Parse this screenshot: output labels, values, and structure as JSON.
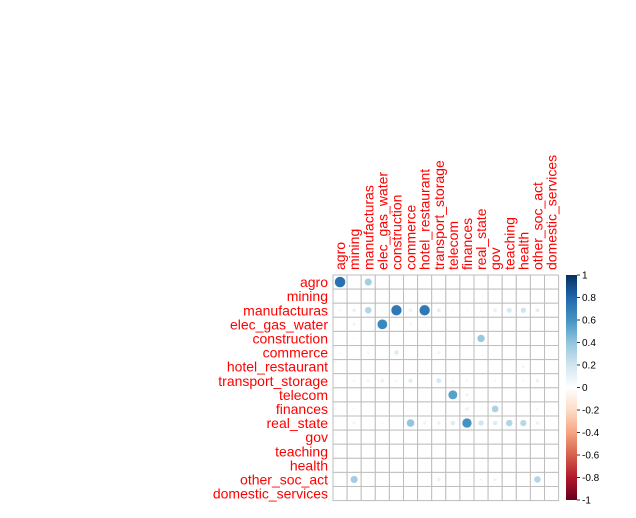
{
  "chart_data": {
    "type": "heatmap",
    "subtype": "correlation-circle-plot",
    "row_labels": [
      "agro",
      "mining",
      "manufacturas",
      "elec_gas_water",
      "construction",
      "commerce",
      "hotel_restaurant",
      "transport_storage",
      "telecom",
      "finances",
      "real_state",
      "gov",
      "teaching",
      "health",
      "other_soc_act",
      "domestic_services"
    ],
    "col_labels": [
      "agro",
      "mining",
      "manufacturas",
      "elec_gas_water",
      "construction",
      "commerce",
      "hotel_restaurant",
      "transport_storage",
      "telecom",
      "finances",
      "real_state",
      "gov",
      "teaching",
      "health",
      "other_soc_act",
      "domestic_services"
    ],
    "values": [
      [
        0.75,
        0,
        0.35,
        0,
        0,
        0,
        0,
        0,
        0,
        0,
        0,
        0,
        0,
        0,
        0,
        0
      ],
      [
        0,
        0,
        0,
        0,
        0,
        0.03,
        0,
        0,
        0,
        0,
        0,
        0,
        0,
        0,
        0,
        0
      ],
      [
        0.06,
        0.1,
        0.3,
        0.06,
        0.72,
        0.1,
        0.72,
        0.12,
        0.05,
        0.05,
        0.06,
        0.1,
        0.18,
        0.2,
        0.12,
        0
      ],
      [
        0,
        0.08,
        0,
        0.65,
        0,
        0.06,
        0.04,
        0,
        0,
        0,
        0,
        0,
        0,
        0,
        0,
        0
      ],
      [
        0,
        0.05,
        0,
        0,
        0,
        0,
        0,
        0,
        0,
        0,
        0.38,
        0,
        0.04,
        0,
        0,
        0
      ],
      [
        0.05,
        0,
        0.06,
        0,
        0.15,
        0,
        0,
        0.08,
        0,
        0,
        0,
        0,
        0,
        0,
        0,
        0
      ],
      [
        0,
        0,
        0,
        0,
        0,
        0,
        0,
        0,
        0,
        0,
        0,
        0,
        0,
        0.07,
        0,
        0
      ],
      [
        0,
        0.06,
        0.08,
        0.1,
        0.06,
        0.14,
        0,
        0.18,
        0.06,
        0.06,
        0,
        0.06,
        0,
        0.06,
        0.1,
        0
      ],
      [
        0,
        0,
        0,
        0,
        0,
        0,
        0,
        0,
        0.55,
        0.08,
        0,
        0,
        0,
        0,
        0,
        0
      ],
      [
        0,
        0.05,
        0,
        0,
        0,
        0.04,
        0,
        0,
        0,
        0.1,
        0,
        0.32,
        0,
        0,
        0.06,
        0
      ],
      [
        0,
        0.08,
        0,
        0.05,
        0,
        0.4,
        0.08,
        0.1,
        0.15,
        0.6,
        0.2,
        0.15,
        0.3,
        0.28,
        0.1,
        0
      ],
      [
        0,
        0,
        0,
        0,
        0,
        0,
        0,
        0,
        0,
        0,
        0,
        0,
        0,
        0,
        0,
        0
      ],
      [
        0,
        0,
        0,
        0,
        0,
        0,
        0,
        0,
        0,
        0,
        0,
        0,
        0,
        0,
        0,
        0
      ],
      [
        0,
        0,
        0,
        0,
        0,
        0,
        0,
        0,
        0,
        0,
        0,
        0,
        0,
        0,
        0,
        0
      ],
      [
        0,
        0.35,
        0,
        0.04,
        0,
        0.04,
        0,
        0.1,
        0,
        0.04,
        0.06,
        0.08,
        0,
        0.04,
        0.3,
        0
      ],
      [
        0,
        0,
        0,
        0,
        0,
        0,
        0,
        0,
        0,
        0,
        0,
        0,
        0,
        0,
        0,
        0
      ]
    ],
    "colorbar": {
      "range": [
        -1,
        1
      ],
      "ticks": [
        "1",
        "0.8",
        "0.6",
        "0.4",
        "0.2",
        "0",
        "-0.2",
        "-0.4",
        "-0.6",
        "-0.8",
        "-1"
      ],
      "colors": [
        "#67001f",
        "#b2182b",
        "#d6604d",
        "#f4a582",
        "#fddbc7",
        "#ffffff",
        "#d1e5f0",
        "#92c5de",
        "#4393c3",
        "#2166ac",
        "#053061"
      ]
    },
    "label_color": "#ff0000",
    "grid_color": "#bebebe",
    "legend_placement": "right"
  }
}
